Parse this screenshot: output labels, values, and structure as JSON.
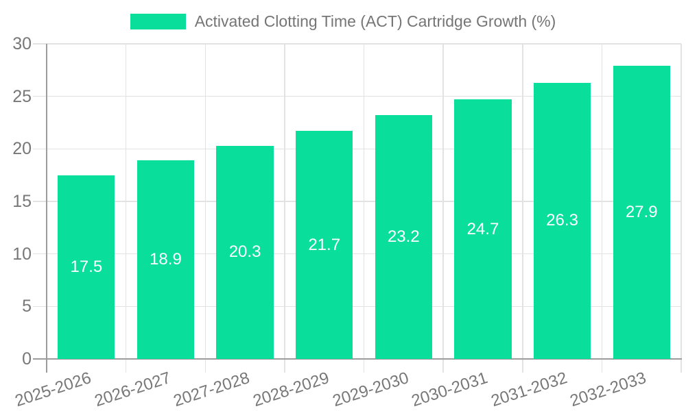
{
  "legend": {
    "label": "Activated Clotting Time (ACT) Cartridge Growth (%)"
  },
  "chart_data": {
    "type": "bar",
    "title": "Activated Clotting Time (ACT) Cartridge Growth (%)",
    "categories": [
      "2025-2026",
      "2026-2027",
      "2027-2028",
      "2028-2029",
      "2029-2030",
      "2030-2031",
      "2031-2032",
      "2032-2033"
    ],
    "values": [
      17.5,
      18.9,
      20.3,
      21.7,
      23.2,
      24.7,
      26.3,
      27.9
    ],
    "value_labels": [
      "17.5",
      "18.9",
      "20.3",
      "21.7",
      "23.2",
      "24.7",
      "26.3",
      "27.9"
    ],
    "series": [
      {
        "name": "Activated Clotting Time (ACT) Cartridge Growth (%)",
        "values": [
          17.5,
          18.9,
          20.3,
          21.7,
          23.2,
          24.7,
          26.3,
          27.9
        ]
      }
    ],
    "xlabel": "",
    "ylabel": "",
    "ylim": [
      0,
      30
    ],
    "yticks": [
      0,
      5,
      10,
      15,
      20,
      25,
      30
    ],
    "grid": true,
    "legend_position": "top-center",
    "x_tick_rotation_deg": -18,
    "colors": {
      "bar": "#09de9b",
      "grid": "#e2e2e2",
      "axis": "#9c9c9c",
      "tick_text": "#777777",
      "legend_text": "#757575",
      "value_text": "#ffffff",
      "background": "#ffffff"
    }
  }
}
